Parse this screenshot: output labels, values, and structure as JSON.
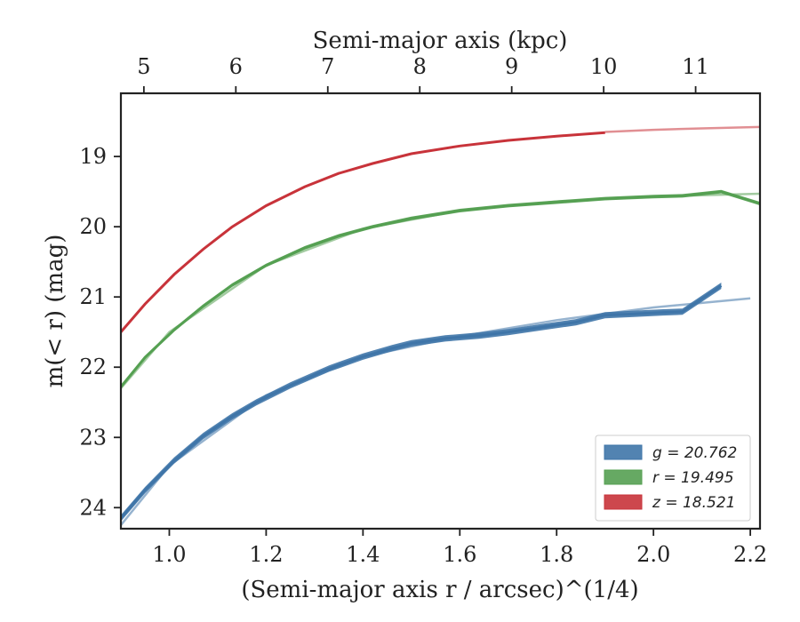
{
  "chart_data": {
    "type": "line",
    "xlabel_bottom": "(Semi-major axis r / arcsec)^(1/4)",
    "xlabel_top": "Semi-major axis (kpc)",
    "ylabel": "m(< r) (mag)",
    "xlim": [
      0.9,
      2.22
    ],
    "ylim": [
      24.3,
      18.1
    ],
    "y_inverted": true,
    "x_ticks": [
      1.0,
      1.2,
      1.4,
      1.6,
      1.8,
      2.0,
      2.2
    ],
    "x_tick_labels": [
      "1.0",
      "1.2",
      "1.4",
      "1.6",
      "1.8",
      "2.0",
      "2.2"
    ],
    "y_ticks": [
      19,
      20,
      21,
      22,
      23,
      24
    ],
    "y_tick_labels": [
      "19",
      "20",
      "21",
      "22",
      "23",
      "24"
    ],
    "top_ticks_kpc": [
      5,
      6,
      7,
      8,
      9,
      10,
      11
    ],
    "top_tick_labels": [
      "5",
      "6",
      "7",
      "8",
      "9",
      "10",
      "11"
    ],
    "top_axis_range_kpc": [
      4.75,
      11.7
    ],
    "legend_position": "lower-right",
    "series": [
      {
        "name": "g = 20.762",
        "color": "#3f75a8",
        "band_width": 0.09,
        "x": [
          0.9,
          0.95,
          1.01,
          1.07,
          1.13,
          1.18,
          1.25,
          1.33,
          1.4,
          1.46,
          1.5,
          1.57,
          1.64,
          1.7,
          1.78,
          1.84,
          1.9,
          1.96,
          2.02,
          2.06,
          2.14
        ],
        "y": [
          24.15,
          23.75,
          23.33,
          22.98,
          22.7,
          22.5,
          22.26,
          22.02,
          21.85,
          21.73,
          21.66,
          21.59,
          21.55,
          21.5,
          21.42,
          21.36,
          21.26,
          21.24,
          21.22,
          21.21,
          20.84
        ],
        "model_x": [
          0.9,
          1.0,
          1.2,
          1.4,
          1.6,
          1.8,
          2.0,
          2.2
        ],
        "model_y": [
          24.25,
          23.4,
          22.4,
          21.85,
          21.56,
          21.33,
          21.15,
          21.02
        ]
      },
      {
        "name": "r = 19.495",
        "color": "#55a052",
        "band_width": 0.05,
        "x": [
          0.9,
          0.95,
          1.01,
          1.07,
          1.13,
          1.2,
          1.28,
          1.35,
          1.42,
          1.5,
          1.6,
          1.7,
          1.8,
          1.9,
          2.0,
          2.06,
          2.14,
          2.22
        ],
        "y": [
          22.28,
          21.86,
          21.47,
          21.13,
          20.83,
          20.55,
          20.3,
          20.13,
          20.0,
          19.88,
          19.77,
          19.7,
          19.65,
          19.6,
          19.57,
          19.56,
          19.5,
          19.67
        ],
        "model_x": [
          0.9,
          1.0,
          1.2,
          1.4,
          1.6,
          1.8,
          2.0,
          2.22
        ],
        "model_y": [
          22.3,
          21.5,
          20.55,
          20.03,
          19.77,
          19.64,
          19.57,
          19.53
        ]
      },
      {
        "name": "z = 18.521",
        "color": "#c8333a",
        "band_width": 0.02,
        "x": [
          0.9,
          0.95,
          1.01,
          1.07,
          1.13,
          1.2,
          1.28,
          1.35,
          1.42,
          1.5,
          1.6,
          1.7,
          1.8,
          1.9
        ],
        "y": [
          21.5,
          21.1,
          20.68,
          20.32,
          20.0,
          19.7,
          19.43,
          19.24,
          19.1,
          18.96,
          18.85,
          18.77,
          18.71,
          18.66
        ],
        "model_x": [
          1.9,
          2.0,
          2.1,
          2.22
        ],
        "model_y": [
          18.65,
          18.62,
          18.6,
          18.58
        ]
      }
    ]
  }
}
